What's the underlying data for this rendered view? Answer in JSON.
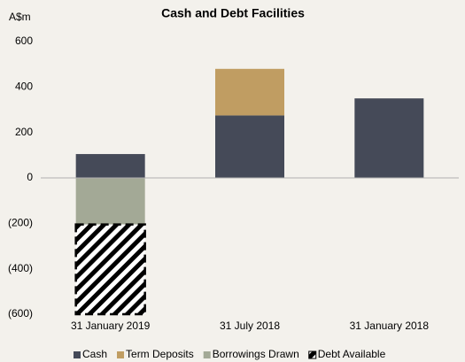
{
  "chart_data": {
    "type": "stacked-bar",
    "title": "Cash and Debt Facilities",
    "y_label": "A$m",
    "categories": [
      "31 January 2019",
      "31 July 2018",
      "31 January 2018"
    ],
    "series": [
      {
        "name": "Cash",
        "color": "#454a58",
        "values": [
          105,
          275,
          350
        ]
      },
      {
        "name": "Term Deposits",
        "color": "#c09d62",
        "values": [
          0,
          205,
          0
        ]
      },
      {
        "name": "Borrowings Drawn",
        "color": "#a3a996",
        "values": [
          -205,
          0,
          0
        ]
      },
      {
        "name": "Debt Available",
        "color": "#000000",
        "hatch": true,
        "values": [
          -395,
          0,
          0
        ]
      }
    ],
    "ylim": [
      -600,
      600
    ],
    "yticks": [
      {
        "value": -600,
        "label": "(600)"
      },
      {
        "value": -400,
        "label": "(400)"
      },
      {
        "value": -200,
        "label": "(200)"
      },
      0,
      200,
      400,
      600
    ],
    "grid": false,
    "legend": "bottom"
  }
}
